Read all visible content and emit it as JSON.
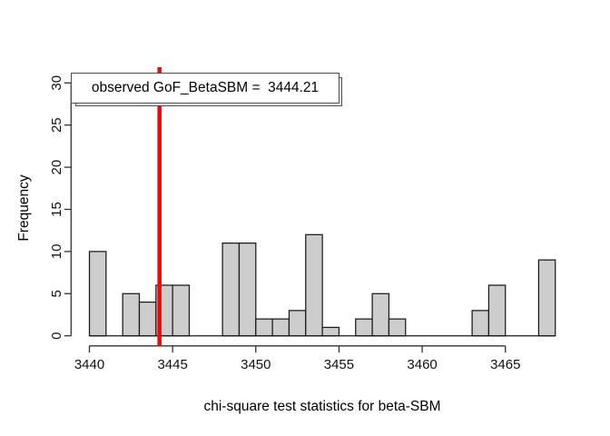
{
  "figure": {
    "background": "#ffffff",
    "axis_color": "#333333"
  },
  "chart_data": {
    "type": "bar",
    "chart_kind": "histogram",
    "title": "",
    "xlabel": "chi-square test statistics for beta-SBM",
    "ylabel": "Frequency",
    "bin_width": 1,
    "bins_start": [
      3440,
      3441,
      3442,
      3443,
      3444,
      3445,
      3446,
      3447,
      3448,
      3449,
      3450,
      3451,
      3452,
      3453,
      3454,
      3455,
      3456,
      3457,
      3458,
      3459,
      3460,
      3461,
      3462,
      3463,
      3464,
      3465,
      3466,
      3467
    ],
    "frequencies": [
      10,
      0,
      5,
      4,
      6,
      6,
      0,
      0,
      11,
      11,
      2,
      2,
      3,
      12,
      1,
      0,
      2,
      5,
      2,
      0,
      0,
      0,
      0,
      3,
      6,
      0,
      0,
      9
    ],
    "x_ticks": [
      3440,
      3445,
      3450,
      3455,
      3460,
      3465
    ],
    "y_ticks": [
      0,
      5,
      10,
      15,
      20,
      25,
      30
    ],
    "xlim": [
      3438.9,
      3469.1
    ],
    "ylim": [
      0,
      30
    ],
    "grid": false,
    "legend_position": "top-left",
    "bar_fill": "#cdcdcd",
    "bar_stroke": "#1a1a1a",
    "observed_line": {
      "x": 3444.21,
      "color": "#ff0000"
    },
    "legend": {
      "text": "observed GoF_BetaSBM =  3444.21",
      "box_fill": "#ffffff",
      "box_border": "#4d4d4d"
    }
  }
}
